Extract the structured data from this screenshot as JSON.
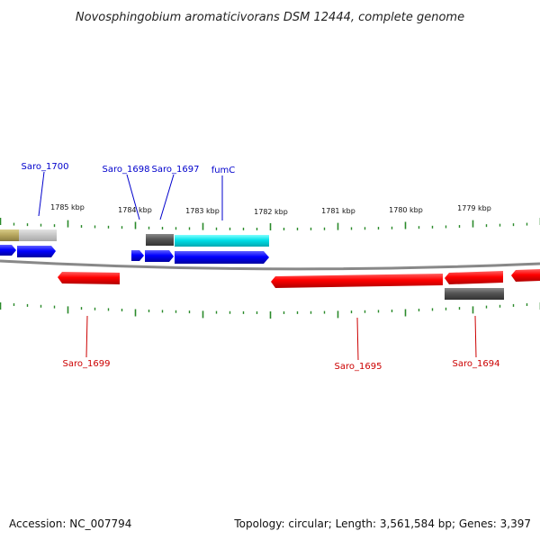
{
  "title": "Novosphingobium aromaticivorans DSM 12444, complete genome",
  "footer": {
    "accession": "Accession: NC_007794",
    "summary": "Topology: circular; Length: 3,561,584 bp; Genes: 3,397"
  },
  "colors": {
    "forward_cds": "#0000ff",
    "reverse_cds": "#ff0000",
    "rna_gray": "#555555",
    "fumC_cyan": "#00d8e0",
    "partial_olive": "#b8a860",
    "light_gray": "#c8c8c8",
    "backbone": "#888888",
    "tick": "#2a8a2a",
    "label_blue": "#0000cc",
    "label_red": "#cc0000"
  },
  "kbp_labels": [
    "1785 kbp",
    "1784 kbp",
    "1783 kbp",
    "1782 kbp",
    "1781 kbp",
    "1780 kbp",
    "1779 kbp"
  ],
  "gene_labels": {
    "saro_1700": "Saro_1700",
    "saro_1698": "Saro_1698",
    "saro_1697": "Saro_1697",
    "fumC": "fumC",
    "saro_1699": "Saro_1699",
    "saro_1695": "Saro_1695",
    "saro_1694": "Saro_1694"
  }
}
